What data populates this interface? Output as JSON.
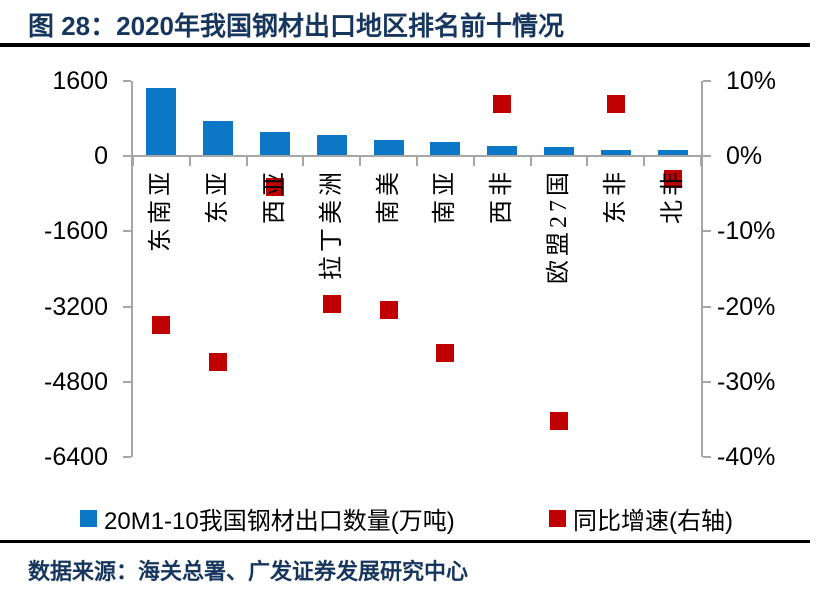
{
  "chart_data": {
    "type": "bar",
    "title": "图 28：2020年我国钢材出口地区排名前十情况",
    "categories": [
      "东南亚",
      "东亚",
      "西亚",
      "拉丁美洲",
      "南美",
      "南亚",
      "西非",
      "欧盟27国",
      "东非",
      "北非"
    ],
    "series": [
      {
        "name": "20M1-10我国钢材出口数量(万吨)",
        "type": "bar",
        "axis": "left",
        "color": "#0c78c5",
        "values": [
          1460,
          750,
          515,
          460,
          340,
          305,
          225,
          200,
          130,
          125
        ]
      },
      {
        "name": "同比增速(右轴)",
        "type": "scatter",
        "marker": "square",
        "axis": "right",
        "color": "#c00000",
        "values": [
          -22.4,
          -27.4,
          -4.1,
          -19.7,
          -20.5,
          -26.2,
          6.9,
          -35.2,
          6.9,
          -3.0
        ]
      }
    ],
    "left_axis": {
      "min": -6400,
      "max": 1600,
      "ticks": [
        "1600",
        "0",
        "-1600",
        "-3200",
        "-4800",
        "-6400"
      ]
    },
    "right_axis": {
      "min": -40,
      "max": 10,
      "ticks": [
        "10%",
        "0%",
        "-10%",
        "-20%",
        "-30%",
        "-40%"
      ]
    },
    "grid": false,
    "legend_position": "bottom"
  },
  "footer": {
    "source": "数据来源：海关总署、广发证券发展研究中心"
  },
  "colors": {
    "title_navy": "#17365d",
    "bar_blue": "#0c78c5",
    "marker_red": "#c00000",
    "axis_gray": "#a6a6a6",
    "rule_black": "#000000"
  }
}
